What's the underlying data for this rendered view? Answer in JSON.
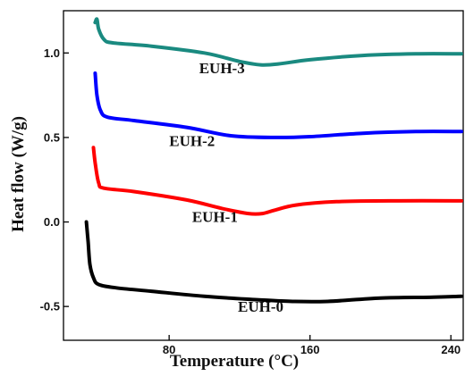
{
  "chart_data": {
    "type": "line",
    "title": "",
    "xlabel": "Temperature (°C)",
    "ylabel": "Heat flow (W/g)",
    "xlim": [
      20,
      247
    ],
    "ylim": [
      -0.7,
      1.25
    ],
    "x_ticks": [
      {
        "value": 80,
        "label": "80"
      },
      {
        "value": 160,
        "label": "160"
      },
      {
        "value": 240,
        "label": "240"
      }
    ],
    "y_ticks": [
      {
        "value": 1.0,
        "label": "1.0"
      },
      {
        "value": 0.5,
        "label": "0.5"
      },
      {
        "value": 0.0,
        "label": "0.0"
      },
      {
        "value": -0.5,
        "label": "-0.5"
      }
    ],
    "series": [
      {
        "name": "EUH-0",
        "color": "#000000",
        "points": [
          [
            33,
            0.0
          ],
          [
            34,
            -0.12
          ],
          [
            35,
            -0.25
          ],
          [
            37,
            -0.33
          ],
          [
            40,
            -0.37
          ],
          [
            50,
            -0.39
          ],
          [
            70,
            -0.41
          ],
          [
            100,
            -0.44
          ],
          [
            130,
            -0.46
          ],
          [
            150,
            -0.47
          ],
          [
            170,
            -0.47
          ],
          [
            200,
            -0.45
          ],
          [
            230,
            -0.445
          ],
          [
            246,
            -0.44
          ]
        ]
      },
      {
        "name": "EUH-1",
        "color": "#ff0000",
        "points": [
          [
            37,
            0.44
          ],
          [
            38,
            0.35
          ],
          [
            40,
            0.23
          ],
          [
            43,
            0.2
          ],
          [
            60,
            0.18
          ],
          [
            90,
            0.13
          ],
          [
            110,
            0.08
          ],
          [
            125,
            0.05
          ],
          [
            133,
            0.05
          ],
          [
            140,
            0.07
          ],
          [
            152,
            0.1
          ],
          [
            175,
            0.12
          ],
          [
            210,
            0.125
          ],
          [
            246,
            0.125
          ]
        ]
      },
      {
        "name": "EUH-2",
        "color": "#0000ff",
        "points": [
          [
            38,
            0.88
          ],
          [
            39,
            0.75
          ],
          [
            41,
            0.66
          ],
          [
            45,
            0.62
          ],
          [
            60,
            0.6
          ],
          [
            90,
            0.56
          ],
          [
            115,
            0.51
          ],
          [
            140,
            0.5
          ],
          [
            160,
            0.505
          ],
          [
            190,
            0.525
          ],
          [
            220,
            0.535
          ],
          [
            246,
            0.535
          ]
        ]
      },
      {
        "name": "EUH-3",
        "color": "#1a8a80",
        "points": [
          [
            38,
            1.18
          ],
          [
            39,
            1.2
          ],
          [
            40,
            1.14
          ],
          [
            43,
            1.08
          ],
          [
            48,
            1.06
          ],
          [
            70,
            1.04
          ],
          [
            100,
            1.0
          ],
          [
            120,
            0.95
          ],
          [
            132,
            0.93
          ],
          [
            142,
            0.935
          ],
          [
            160,
            0.96
          ],
          [
            190,
            0.985
          ],
          [
            220,
            0.995
          ],
          [
            246,
            0.995
          ]
        ]
      }
    ],
    "annotations": [
      {
        "series": "EUH-0",
        "text": "EUH-0",
        "x": 132,
        "y": -0.53
      },
      {
        "series": "EUH-1",
        "text": "EUH-1",
        "x": 106,
        "y": 0.0
      },
      {
        "series": "EUH-2",
        "text": "EUH-2",
        "x": 93,
        "y": 0.45
      },
      {
        "series": "EUH-3",
        "text": "EUH-3",
        "x": 110,
        "y": 0.88
      }
    ]
  }
}
